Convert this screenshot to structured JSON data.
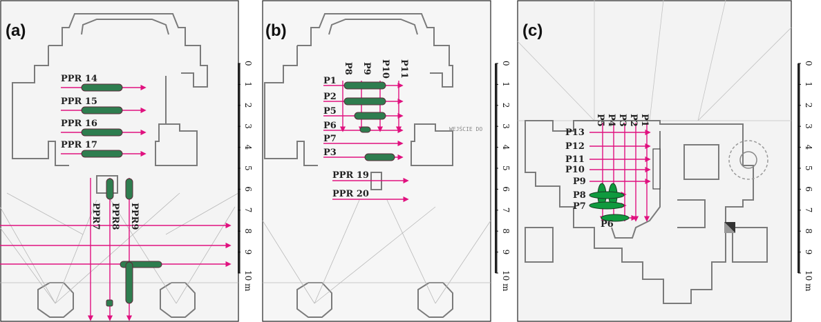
{
  "panels": {
    "a": {
      "letter": "(a)",
      "labels": [
        "PPR 14",
        "PPR 15",
        "PPR 16",
        "PPR 17",
        "PPR7",
        "PPR8",
        "PPR9"
      ]
    },
    "b": {
      "letter": "(b)",
      "labels": [
        "P1",
        "P2",
        "P5",
        "P6",
        "P7",
        "P3",
        "P8",
        "P9",
        "P10",
        "P11",
        "PPR 19",
        "PPR 20"
      ],
      "inscription": "WEJŚCIE DO"
    },
    "c": {
      "letter": "(c)",
      "labels": [
        "P13",
        "P12",
        "P11",
        "P10",
        "P9",
        "P8",
        "P7",
        "P6",
        "P5",
        "P4",
        "P3",
        "P2",
        "P1"
      ]
    }
  },
  "scale_bar": {
    "ticks": [
      "0",
      "1",
      "2",
      "3",
      "4",
      "5",
      "6",
      "7",
      "8",
      "9",
      "10 m"
    ]
  },
  "colors": {
    "profile_line": "#e0117f",
    "anomaly_fill": "#2e7d4f",
    "anomaly_fill_c": "#0f9a3e",
    "plan_lines": "#8a8a8a"
  }
}
